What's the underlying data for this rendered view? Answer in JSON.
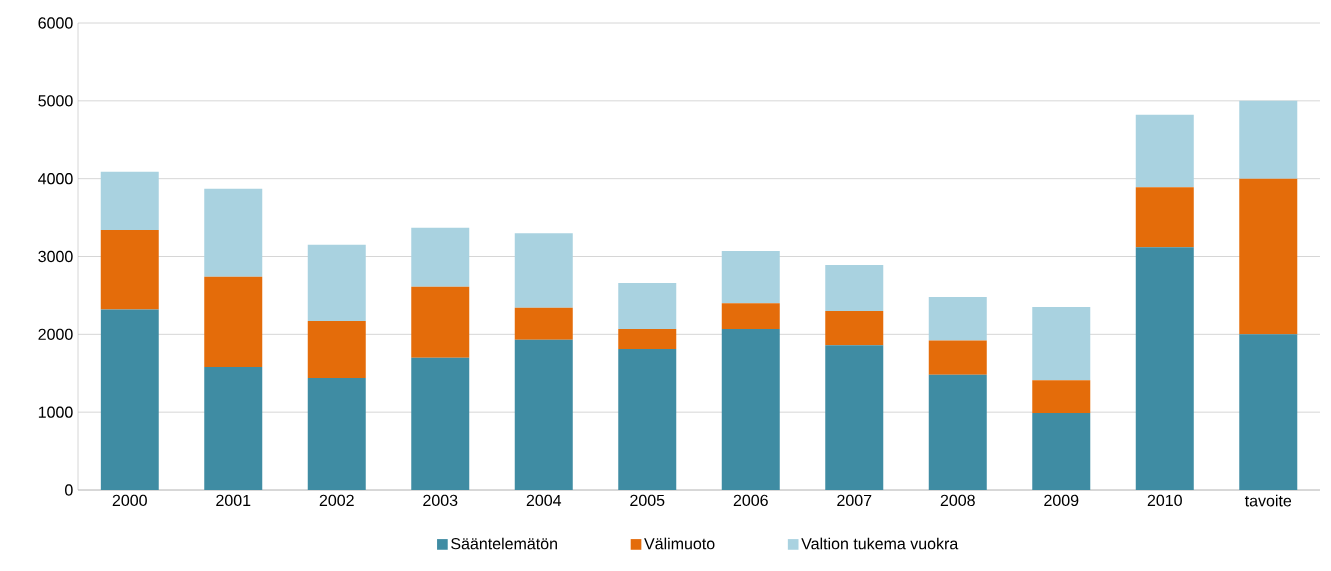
{
  "chart_data": {
    "type": "bar",
    "stacked": true,
    "categories": [
      "2000",
      "2001",
      "2002",
      "2003",
      "2004",
      "2005",
      "2006",
      "2007",
      "2008",
      "2009",
      "2010",
      "tavoite"
    ],
    "series": [
      {
        "name": "Sääntelemätön",
        "color": "#3f8ca3",
        "values": [
          2320,
          1580,
          1440,
          1700,
          1930,
          1810,
          2070,
          1860,
          1480,
          990,
          3120,
          2000
        ]
      },
      {
        "name": "Välimuoto",
        "color": "#e46c0a",
        "values": [
          1020,
          1160,
          730,
          910,
          410,
          260,
          330,
          440,
          440,
          420,
          770,
          2000
        ]
      },
      {
        "name": "Valtion tukema vuokra",
        "color": "#a9d2e0",
        "values": [
          750,
          1130,
          980,
          760,
          960,
          590,
          670,
          590,
          560,
          940,
          930,
          1000
        ]
      }
    ],
    "ylim": [
      0,
      6000
    ],
    "yticks": [
      0,
      1000,
      2000,
      3000,
      4000,
      5000,
      6000
    ],
    "grid": "y",
    "legend": "bottom"
  }
}
